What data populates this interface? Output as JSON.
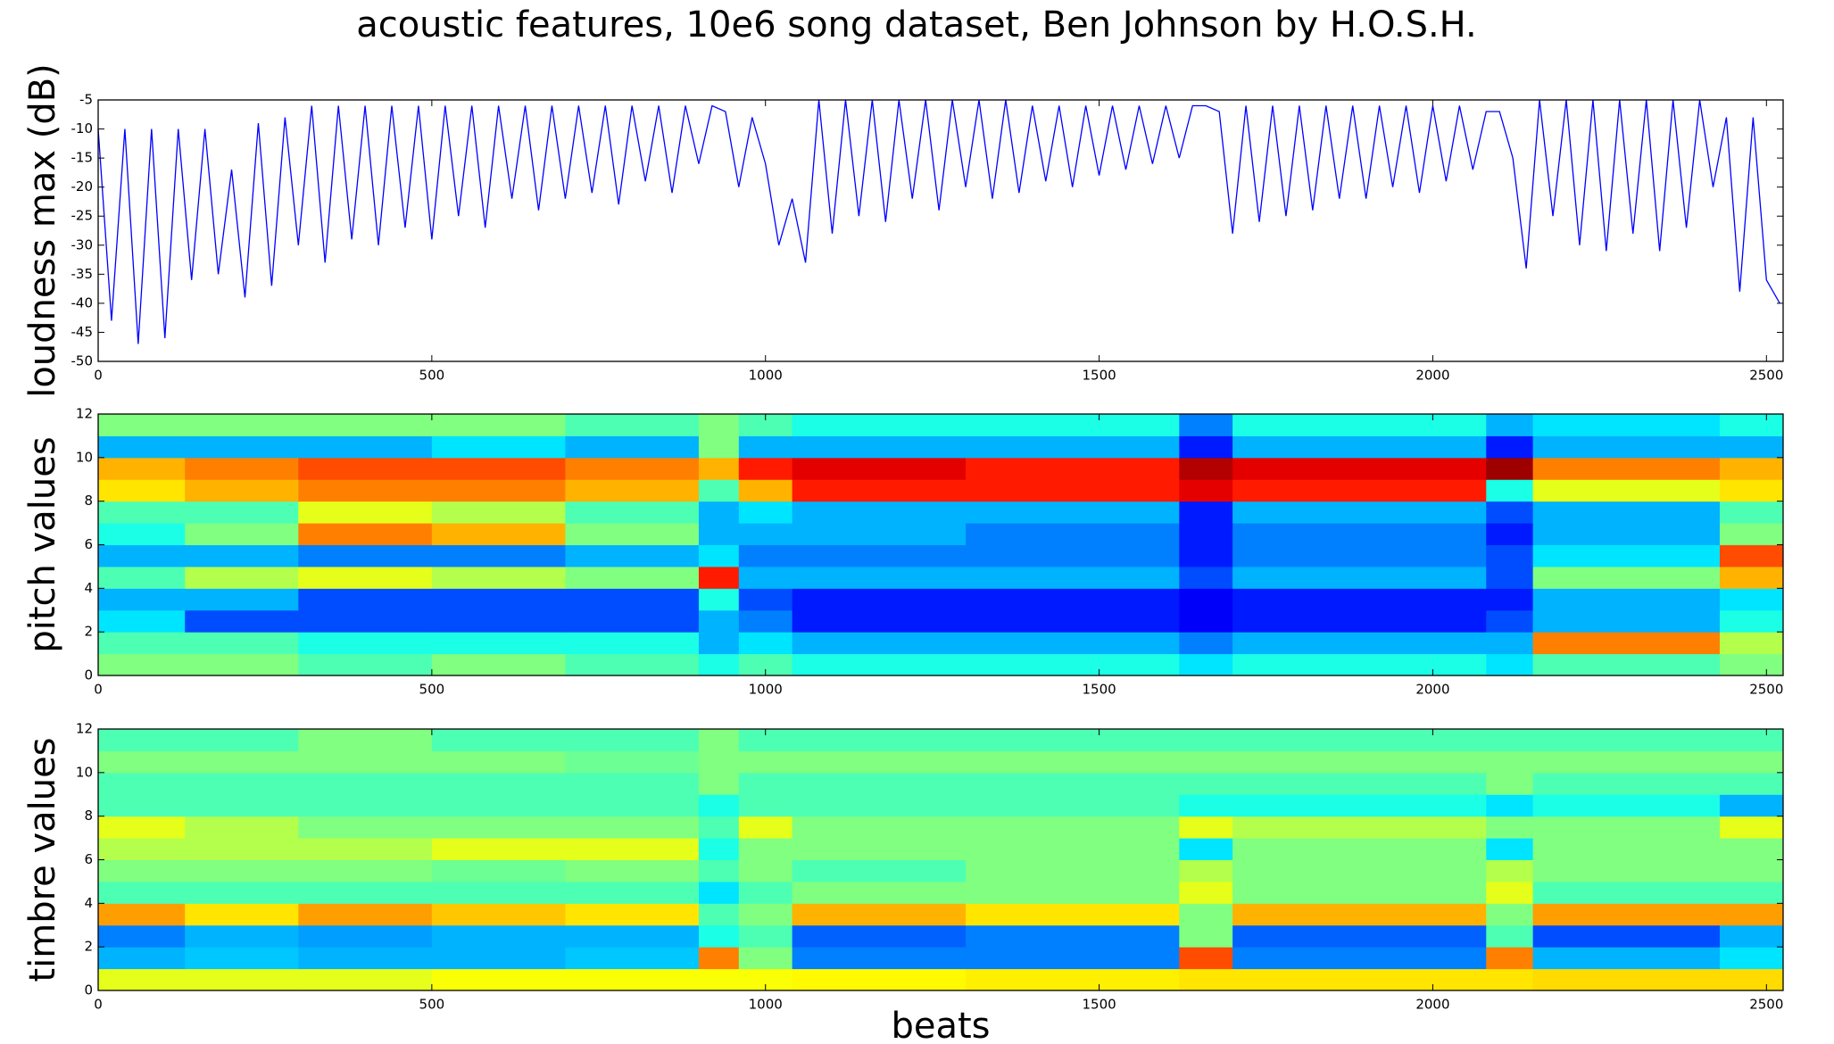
{
  "title": "acoustic features, 10e6 song dataset, Ben Johnson by H.O.S.H.",
  "chart_data": [
    {
      "type": "line",
      "ylabel": "loudness max (dB)",
      "color": "#0000ff",
      "xlim": [
        0,
        2525
      ],
      "xticks": [
        0,
        500,
        1000,
        1500,
        2000,
        2500
      ],
      "ylim": [
        -50,
        -5
      ],
      "yticks": [
        -50,
        -45,
        -40,
        -35,
        -30,
        -25,
        -20,
        -15,
        -10,
        -5
      ],
      "x": [
        0,
        20,
        40,
        60,
        80,
        100,
        120,
        140,
        160,
        180,
        200,
        220,
        240,
        260,
        280,
        300,
        320,
        340,
        360,
        380,
        400,
        420,
        440,
        460,
        480,
        500,
        520,
        540,
        560,
        580,
        600,
        620,
        640,
        660,
        680,
        700,
        720,
        740,
        760,
        780,
        800,
        820,
        840,
        860,
        880,
        900,
        920,
        940,
        960,
        980,
        1000,
        1020,
        1040,
        1060,
        1080,
        1100,
        1120,
        1140,
        1160,
        1180,
        1200,
        1220,
        1240,
        1260,
        1280,
        1300,
        1320,
        1340,
        1360,
        1380,
        1400,
        1420,
        1440,
        1460,
        1480,
        1500,
        1520,
        1540,
        1560,
        1580,
        1600,
        1620,
        1640,
        1660,
        1680,
        1700,
        1720,
        1740,
        1760,
        1780,
        1800,
        1820,
        1840,
        1860,
        1880,
        1900,
        1920,
        1940,
        1960,
        1980,
        2000,
        2020,
        2040,
        2060,
        2080,
        2100,
        2120,
        2140,
        2160,
        2180,
        2200,
        2220,
        2240,
        2260,
        2280,
        2300,
        2320,
        2340,
        2360,
        2380,
        2400,
        2420,
        2440,
        2460,
        2480,
        2500,
        2520
      ],
      "values": [
        -10,
        -43,
        -10,
        -47,
        -10,
        -46,
        -10,
        -36,
        -10,
        -35,
        -17,
        -39,
        -9,
        -37,
        -8,
        -30,
        -6,
        -33,
        -6,
        -29,
        -6,
        -30,
        -6,
        -27,
        -6,
        -29,
        -6,
        -25,
        -6,
        -27,
        -6,
        -22,
        -6,
        -24,
        -6,
        -22,
        -6,
        -21,
        -6,
        -23,
        -6,
        -19,
        -6,
        -21,
        -6,
        -16,
        -6,
        -7,
        -20,
        -8,
        -16,
        -30,
        -22,
        -33,
        -5,
        -28,
        -5,
        -25,
        -5,
        -26,
        -5,
        -22,
        -5,
        -24,
        -5,
        -20,
        -5,
        -22,
        -5,
        -21,
        -6,
        -19,
        -6,
        -20,
        -6,
        -18,
        -6,
        -17,
        -6,
        -16,
        -6,
        -15,
        -6,
        -6,
        -7,
        -28,
        -6,
        -26,
        -6,
        -25,
        -6,
        -24,
        -6,
        -22,
        -6,
        -22,
        -6,
        -20,
        -6,
        -21,
        -6,
        -19,
        -6,
        -17,
        -7,
        -7,
        -15,
        -34,
        -5,
        -25,
        -5,
        -30,
        -5,
        -31,
        -5,
        -28,
        -5,
        -31,
        -5,
        -27,
        -5,
        -20,
        -8,
        -38,
        -8,
        -36,
        -40
      ]
    },
    {
      "type": "heatmap",
      "ylabel": "pitch values",
      "colormap": "jet",
      "xlim": [
        0,
        2525
      ],
      "xticks": [
        0,
        500,
        1000,
        1500,
        2000,
        2500
      ],
      "ylim": [
        0,
        12
      ],
      "yticks": [
        0,
        2,
        4,
        6,
        8,
        10,
        12
      ],
      "bins": [
        0,
        130,
        300,
        500,
        700,
        900,
        960,
        1040,
        1300,
        1620,
        1700,
        2080,
        2150,
        2430,
        2525
      ],
      "z": [
        [
          0.5,
          0.5,
          0.45,
          0.5,
          0.45,
          0.4,
          0.45,
          0.4,
          0.4,
          0.35,
          0.4,
          0.35,
          0.45,
          0.5
        ],
        [
          0.45,
          0.45,
          0.4,
          0.4,
          0.4,
          0.3,
          0.35,
          0.3,
          0.3,
          0.25,
          0.3,
          0.3,
          0.75,
          0.55
        ],
        [
          0.35,
          0.2,
          0.2,
          0.2,
          0.2,
          0.3,
          0.25,
          0.15,
          0.15,
          0.12,
          0.15,
          0.2,
          0.3,
          0.4
        ],
        [
          0.3,
          0.3,
          0.2,
          0.2,
          0.2,
          0.4,
          0.2,
          0.15,
          0.15,
          0.12,
          0.15,
          0.15,
          0.3,
          0.35
        ],
        [
          0.45,
          0.55,
          0.6,
          0.55,
          0.5,
          0.85,
          0.3,
          0.3,
          0.3,
          0.2,
          0.3,
          0.2,
          0.5,
          0.7
        ],
        [
          0.3,
          0.3,
          0.25,
          0.25,
          0.3,
          0.35,
          0.25,
          0.25,
          0.25,
          0.15,
          0.25,
          0.2,
          0.35,
          0.8
        ],
        [
          0.4,
          0.5,
          0.75,
          0.7,
          0.5,
          0.3,
          0.3,
          0.3,
          0.25,
          0.15,
          0.25,
          0.15,
          0.3,
          0.5
        ],
        [
          0.45,
          0.45,
          0.6,
          0.55,
          0.45,
          0.3,
          0.35,
          0.3,
          0.3,
          0.15,
          0.3,
          0.2,
          0.3,
          0.45
        ],
        [
          0.65,
          0.7,
          0.75,
          0.75,
          0.7,
          0.45,
          0.7,
          0.85,
          0.85,
          0.9,
          0.85,
          0.4,
          0.6,
          0.65
        ],
        [
          0.7,
          0.75,
          0.8,
          0.8,
          0.75,
          0.7,
          0.85,
          0.9,
          0.85,
          0.95,
          0.9,
          0.97,
          0.75,
          0.7
        ],
        [
          0.3,
          0.3,
          0.3,
          0.35,
          0.3,
          0.5,
          0.3,
          0.3,
          0.3,
          0.15,
          0.3,
          0.15,
          0.3,
          0.3
        ],
        [
          0.5,
          0.5,
          0.5,
          0.5,
          0.45,
          0.5,
          0.45,
          0.4,
          0.4,
          0.25,
          0.4,
          0.3,
          0.35,
          0.4
        ]
      ]
    },
    {
      "type": "heatmap",
      "ylabel": "timbre values",
      "xlabel": "beats",
      "colormap": "jet",
      "xlim": [
        0,
        2525
      ],
      "xticks": [
        0,
        500,
        1000,
        1500,
        2000,
        2500
      ],
      "ylim": [
        0,
        12
      ],
      "yticks": [
        0,
        2,
        4,
        6,
        8,
        10,
        12
      ],
      "bins": [
        0,
        130,
        300,
        500,
        700,
        900,
        960,
        1040,
        1300,
        1620,
        1700,
        2080,
        2150,
        2430,
        2525
      ],
      "z": [
        [
          0.6,
          0.6,
          0.6,
          0.62,
          0.62,
          0.62,
          0.62,
          0.63,
          0.64,
          0.65,
          0.65,
          0.65,
          0.66,
          0.66
        ],
        [
          0.3,
          0.32,
          0.3,
          0.3,
          0.32,
          0.75,
          0.5,
          0.25,
          0.25,
          0.8,
          0.25,
          0.75,
          0.3,
          0.35
        ],
        [
          0.25,
          0.3,
          0.28,
          0.3,
          0.3,
          0.4,
          0.45,
          0.22,
          0.25,
          0.5,
          0.22,
          0.45,
          0.2,
          0.3
        ],
        [
          0.72,
          0.65,
          0.72,
          0.68,
          0.65,
          0.45,
          0.5,
          0.7,
          0.65,
          0.5,
          0.7,
          0.5,
          0.72,
          0.72
        ],
        [
          0.45,
          0.45,
          0.45,
          0.45,
          0.45,
          0.35,
          0.45,
          0.5,
          0.5,
          0.6,
          0.5,
          0.6,
          0.45,
          0.45
        ],
        [
          0.5,
          0.5,
          0.5,
          0.48,
          0.5,
          0.45,
          0.5,
          0.45,
          0.5,
          0.55,
          0.5,
          0.55,
          0.5,
          0.5
        ],
        [
          0.55,
          0.55,
          0.55,
          0.6,
          0.6,
          0.4,
          0.5,
          0.5,
          0.5,
          0.35,
          0.5,
          0.35,
          0.5,
          0.5
        ],
        [
          0.6,
          0.55,
          0.5,
          0.5,
          0.5,
          0.45,
          0.6,
          0.5,
          0.5,
          0.6,
          0.55,
          0.5,
          0.5,
          0.6
        ],
        [
          0.45,
          0.45,
          0.45,
          0.45,
          0.45,
          0.4,
          0.45,
          0.45,
          0.45,
          0.4,
          0.4,
          0.35,
          0.4,
          0.3
        ],
        [
          0.45,
          0.45,
          0.45,
          0.45,
          0.45,
          0.5,
          0.45,
          0.45,
          0.45,
          0.45,
          0.45,
          0.5,
          0.45,
          0.45
        ],
        [
          0.5,
          0.5,
          0.5,
          0.5,
          0.48,
          0.5,
          0.5,
          0.5,
          0.5,
          0.5,
          0.5,
          0.5,
          0.5,
          0.5
        ],
        [
          0.45,
          0.45,
          0.5,
          0.45,
          0.45,
          0.5,
          0.45,
          0.45,
          0.45,
          0.45,
          0.45,
          0.45,
          0.45,
          0.45
        ]
      ]
    }
  ]
}
